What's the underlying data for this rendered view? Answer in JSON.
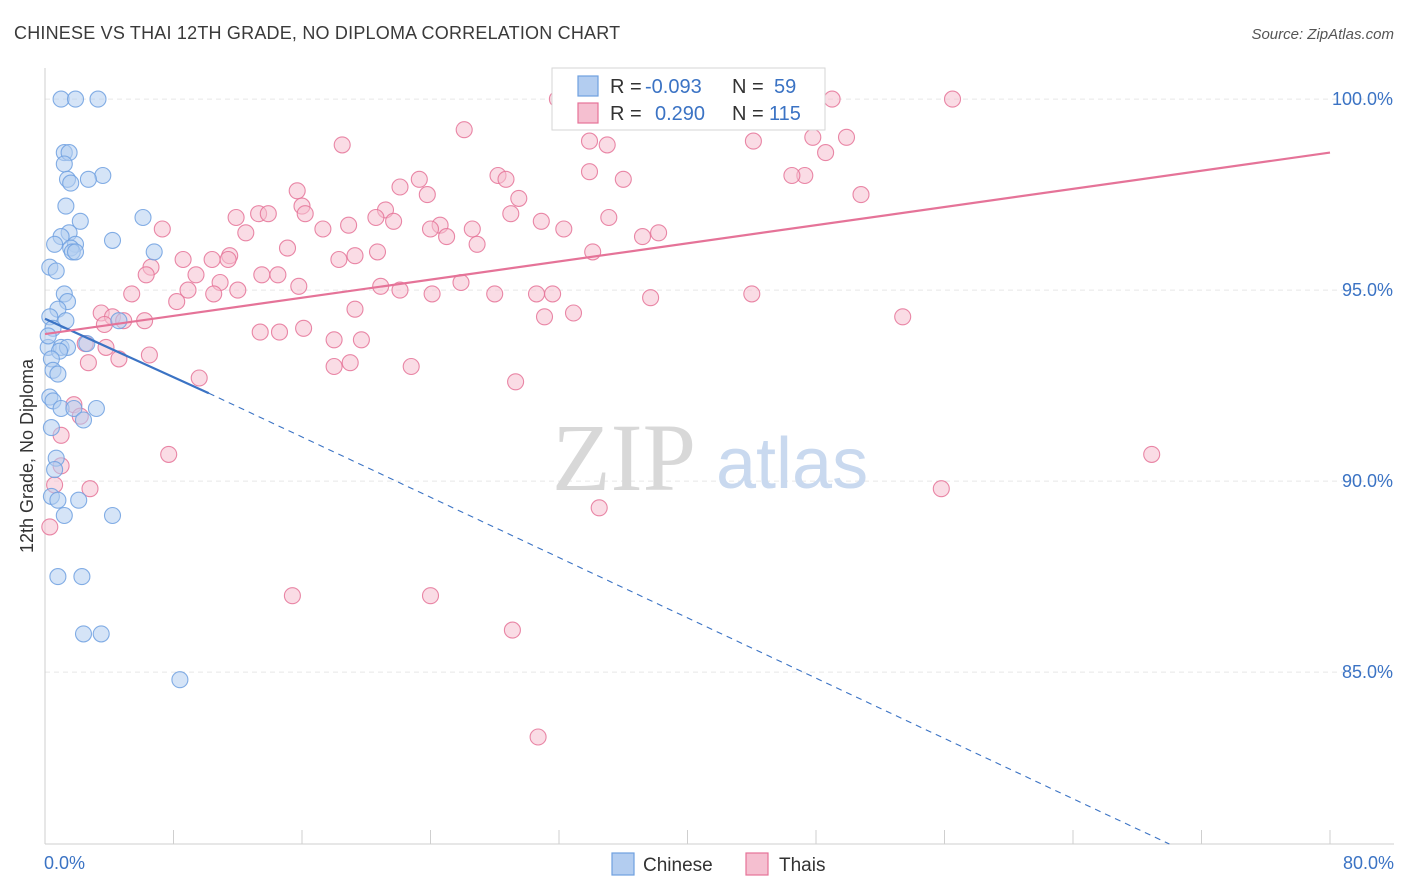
{
  "chart_data": {
    "type": "scatter",
    "title": "CHINESE VS THAI 12TH GRADE, NO DIPLOMA CORRELATION CHART",
    "source": "Source: ZipAtlas.com",
    "xlabel": "",
    "ylabel": "12th Grade, No Diploma",
    "xlim": [
      0,
      80
    ],
    "ylim": [
      80.5,
      100.5
    ],
    "x_tick_labels": [
      "0.0%",
      "80.0%"
    ],
    "y_ticks": [
      85,
      90,
      95,
      100
    ],
    "y_tick_labels": [
      "85.0%",
      "90.0%",
      "95.0%",
      "100.0%"
    ],
    "grid": true,
    "watermark": {
      "zip": "ZIP",
      "atlas": "atlas"
    },
    "legend_stats": [
      {
        "series": "Chinese",
        "r_label": "R =",
        "r_value": "-0.093",
        "n_label": "N =",
        "n_value": "59"
      },
      {
        "series": "Thais",
        "r_label": "R =",
        "r_value": "0.290",
        "n_label": "N =",
        "n_value": "115"
      }
    ],
    "series": [
      {
        "name": "Chinese",
        "color": "#6fa0e0",
        "fill": "#b3cdf0",
        "trend": {
          "x": [
            0,
            10.2
          ],
          "y": [
            94.25,
            92.3
          ],
          "dashed_to": {
            "x": [
              10.2,
              70.0
            ],
            "y": [
              92.3,
              80.5
            ]
          }
        },
        "points": [
          [
            1.0,
            100.0
          ],
          [
            1.9,
            100.0
          ],
          [
            3.3,
            100.0
          ],
          [
            1.2,
            98.6
          ],
          [
            1.5,
            98.6
          ],
          [
            1.2,
            98.3
          ],
          [
            3.6,
            98.0
          ],
          [
            1.4,
            97.9
          ],
          [
            2.7,
            97.9
          ],
          [
            1.6,
            97.8
          ],
          [
            1.3,
            97.2
          ],
          [
            6.1,
            96.9
          ],
          [
            2.2,
            96.8
          ],
          [
            1.5,
            96.5
          ],
          [
            1.0,
            96.4
          ],
          [
            0.6,
            96.2
          ],
          [
            4.2,
            96.3
          ],
          [
            1.9,
            96.2
          ],
          [
            1.6,
            96.1
          ],
          [
            1.7,
            96.0
          ],
          [
            1.9,
            96.0
          ],
          [
            6.8,
            96.0
          ],
          [
            0.3,
            95.6
          ],
          [
            0.7,
            95.5
          ],
          [
            1.2,
            94.9
          ],
          [
            1.4,
            94.7
          ],
          [
            0.8,
            94.5
          ],
          [
            0.3,
            94.3
          ],
          [
            1.3,
            94.2
          ],
          [
            0.5,
            94.0
          ],
          [
            4.6,
            94.2
          ],
          [
            2.6,
            93.6
          ],
          [
            0.2,
            93.5
          ],
          [
            1.0,
            93.5
          ],
          [
            1.4,
            93.5
          ],
          [
            0.9,
            93.4
          ],
          [
            0.4,
            93.2
          ],
          [
            0.5,
            92.9
          ],
          [
            0.8,
            92.8
          ],
          [
            0.3,
            92.2
          ],
          [
            0.5,
            92.1
          ],
          [
            1.0,
            91.9
          ],
          [
            1.8,
            91.9
          ],
          [
            3.2,
            91.9
          ],
          [
            2.4,
            91.6
          ],
          [
            0.7,
            90.6
          ],
          [
            0.6,
            90.3
          ],
          [
            0.4,
            89.6
          ],
          [
            0.8,
            89.5
          ],
          [
            2.1,
            89.5
          ],
          [
            1.2,
            89.1
          ],
          [
            4.2,
            89.1
          ],
          [
            0.8,
            87.5
          ],
          [
            2.3,
            87.5
          ],
          [
            2.4,
            86.0
          ],
          [
            3.5,
            86.0
          ],
          [
            8.4,
            84.8
          ],
          [
            0.4,
            91.4
          ],
          [
            0.2,
            93.8
          ]
        ]
      },
      {
        "name": "Thais",
        "color": "#e57398",
        "fill": "#f5bfd0",
        "trend": {
          "x": [
            0,
            80
          ],
          "y": [
            93.85,
            98.6
          ]
        },
        "points": [
          [
            31.9,
            100.0
          ],
          [
            49.0,
            100.0
          ],
          [
            56.5,
            100.0
          ],
          [
            26.1,
            99.2
          ],
          [
            18.5,
            98.8
          ],
          [
            33.9,
            98.9
          ],
          [
            47.8,
            99.0
          ],
          [
            44.1,
            98.9
          ],
          [
            48.6,
            98.6
          ],
          [
            49.9,
            99.0
          ],
          [
            35.0,
            98.8
          ],
          [
            33.9,
            98.1
          ],
          [
            47.3,
            98.0
          ],
          [
            28.2,
            98.0
          ],
          [
            28.7,
            97.9
          ],
          [
            36.0,
            97.9
          ],
          [
            23.3,
            97.9
          ],
          [
            46.5,
            98.0
          ],
          [
            15.7,
            97.6
          ],
          [
            22.1,
            97.7
          ],
          [
            23.8,
            97.5
          ],
          [
            29.5,
            97.4
          ],
          [
            50.8,
            97.5
          ],
          [
            16.0,
            97.2
          ],
          [
            21.2,
            97.1
          ],
          [
            13.3,
            97.0
          ],
          [
            13.9,
            97.0
          ],
          [
            16.2,
            97.0
          ],
          [
            29.0,
            97.0
          ],
          [
            11.9,
            96.9
          ],
          [
            20.6,
            96.9
          ],
          [
            35.1,
            96.9
          ],
          [
            30.9,
            96.8
          ],
          [
            21.7,
            96.8
          ],
          [
            18.9,
            96.7
          ],
          [
            24.6,
            96.7
          ],
          [
            7.3,
            96.6
          ],
          [
            17.3,
            96.6
          ],
          [
            26.6,
            96.6
          ],
          [
            32.3,
            96.6
          ],
          [
            24.0,
            96.6
          ],
          [
            12.5,
            96.5
          ],
          [
            37.2,
            96.4
          ],
          [
            38.2,
            96.5
          ],
          [
            25.0,
            96.4
          ],
          [
            26.9,
            96.2
          ],
          [
            15.1,
            96.1
          ],
          [
            20.7,
            96.0
          ],
          [
            34.1,
            96.0
          ],
          [
            19.3,
            95.9
          ],
          [
            11.5,
            95.9
          ],
          [
            18.3,
            95.8
          ],
          [
            8.6,
            95.8
          ],
          [
            10.4,
            95.8
          ],
          [
            11.4,
            95.8
          ],
          [
            6.6,
            95.6
          ],
          [
            6.3,
            95.4
          ],
          [
            13.5,
            95.4
          ],
          [
            9.4,
            95.4
          ],
          [
            14.5,
            95.4
          ],
          [
            10.9,
            95.2
          ],
          [
            25.9,
            95.2
          ],
          [
            20.9,
            95.1
          ],
          [
            15.8,
            95.1
          ],
          [
            12.0,
            95.0
          ],
          [
            8.9,
            95.0
          ],
          [
            10.5,
            94.9
          ],
          [
            22.1,
            95.0
          ],
          [
            30.6,
            94.9
          ],
          [
            24.1,
            94.9
          ],
          [
            28.0,
            94.9
          ],
          [
            31.6,
            94.9
          ],
          [
            5.4,
            94.9
          ],
          [
            44.0,
            94.9
          ],
          [
            37.7,
            94.8
          ],
          [
            8.2,
            94.7
          ],
          [
            19.3,
            94.5
          ],
          [
            3.5,
            94.4
          ],
          [
            32.9,
            94.4
          ],
          [
            31.1,
            94.3
          ],
          [
            4.2,
            94.3
          ],
          [
            53.4,
            94.3
          ],
          [
            3.7,
            94.1
          ],
          [
            4.9,
            94.2
          ],
          [
            6.2,
            94.2
          ],
          [
            16.1,
            94.0
          ],
          [
            14.6,
            93.9
          ],
          [
            13.4,
            93.9
          ],
          [
            18.0,
            93.7
          ],
          [
            19.7,
            93.7
          ],
          [
            2.5,
            93.6
          ],
          [
            3.8,
            93.5
          ],
          [
            4.6,
            93.2
          ],
          [
            2.7,
            93.1
          ],
          [
            18.0,
            93.0
          ],
          [
            19.0,
            93.1
          ],
          [
            22.8,
            93.0
          ],
          [
            29.3,
            92.6
          ],
          [
            9.6,
            92.7
          ],
          [
            1.8,
            92.0
          ],
          [
            1.0,
            91.2
          ],
          [
            1.0,
            90.4
          ],
          [
            7.7,
            90.7
          ],
          [
            68.9,
            90.7
          ],
          [
            2.8,
            89.8
          ],
          [
            55.8,
            89.8
          ],
          [
            34.5,
            89.3
          ],
          [
            0.3,
            88.8
          ],
          [
            15.4,
            87.0
          ],
          [
            24.0,
            87.0
          ],
          [
            29.1,
            86.1
          ],
          [
            30.7,
            83.3
          ],
          [
            0.6,
            89.9
          ],
          [
            2.2,
            91.7
          ],
          [
            6.5,
            93.3
          ]
        ]
      }
    ]
  }
}
